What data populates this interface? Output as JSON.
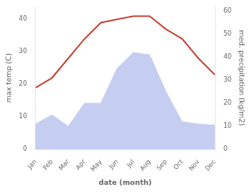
{
  "chart_data": {
    "type": "line",
    "xlabel": "date (month)",
    "ylabel": "max temp (C)",
    "y2label": "med. precipitation (kg/m2)",
    "categories": [
      "Jan",
      "Feb",
      "Mar",
      "Apr",
      "May",
      "Jun",
      "Jul",
      "Aug",
      "Sep",
      "Oct",
      "Nov",
      "Dec"
    ],
    "series": [
      {
        "type": "area",
        "axis": "y2",
        "color": "#c5cef0",
        "values": [
          11,
          15,
          10,
          20,
          20,
          35,
          42,
          41,
          25,
          12,
          11,
          10.5
        ]
      },
      {
        "type": "line",
        "color": "#c0392b",
        "values": [
          19,
          22,
          28,
          34,
          39,
          40,
          41,
          41,
          37,
          34,
          28,
          23
        ]
      }
    ],
    "ylim": [
      0,
      44
    ],
    "yticks": [
      0,
      10,
      20,
      30,
      40
    ],
    "y2lim": [
      0,
      62
    ],
    "y2ticks": [
      0,
      10,
      20,
      30,
      40,
      50,
      60
    ],
    "grid": false
  }
}
